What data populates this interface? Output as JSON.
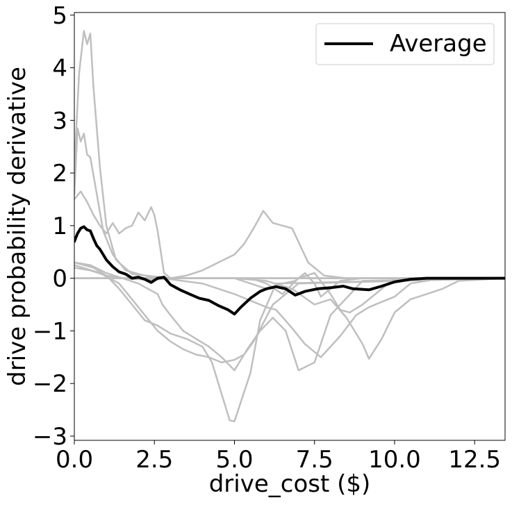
{
  "chart_data": {
    "type": "line",
    "title": "",
    "xlabel": "drive_cost ($)",
    "ylabel": "drive probability derivative",
    "xlim": [
      0,
      13.45
    ],
    "ylim": [
      -3.08,
      5.05
    ],
    "xticks": [
      0,
      2.5,
      5,
      7.5,
      10,
      12.5
    ],
    "xtick_labels": [
      "0.0",
      "2.5",
      "5.0",
      "7.5",
      "10.0",
      "12.5"
    ],
    "yticks": [
      -3,
      -2,
      -1,
      0,
      1,
      2,
      3,
      4,
      5
    ],
    "ytick_labels": [
      "−3",
      "−2",
      "−1",
      "0",
      "1",
      "2",
      "3",
      "4",
      "5"
    ],
    "grid": false,
    "legend": {
      "position": "top-right",
      "entries": [
        "Average"
      ]
    },
    "colors": {
      "average": "#000000",
      "individual": "#bfbfbf"
    },
    "series": [
      {
        "name": "",
        "role": "individual",
        "x": [
          0,
          0.15,
          0.3,
          0.4,
          0.5,
          0.6,
          0.8,
          1.0,
          1.3,
          1.8,
          3.0,
          13.45
        ],
        "y": [
          2.1,
          3.9,
          4.7,
          4.45,
          4.65,
          3.6,
          2.1,
          1.0,
          0.35,
          0.08,
          0.0,
          0.0
        ]
      },
      {
        "name": "",
        "role": "individual",
        "x": [
          0,
          0.1,
          0.2,
          0.3,
          0.4,
          0.5,
          0.7,
          0.9,
          1.2,
          1.6,
          2.5,
          13.45
        ],
        "y": [
          1.6,
          2.85,
          2.6,
          2.75,
          2.35,
          2.3,
          1.6,
          0.9,
          0.45,
          0.15,
          0.0,
          0.0
        ]
      },
      {
        "name": "",
        "role": "individual",
        "x": [
          0,
          0.2,
          0.4,
          0.6,
          0.8,
          1.0,
          1.2,
          1.4,
          1.6,
          1.8,
          2.0,
          2.2,
          2.4,
          2.5,
          2.6,
          2.7,
          2.8,
          3.0,
          3.5,
          13.45
        ],
        "y": [
          1.5,
          1.65,
          1.45,
          1.2,
          1.0,
          0.85,
          1.05,
          0.85,
          0.95,
          1.0,
          1.25,
          1.1,
          1.35,
          1.2,
          0.9,
          0.5,
          0.1,
          0.0,
          0.0,
          0.0
        ]
      },
      {
        "name": "",
        "role": "individual",
        "x": [
          0,
          0.5,
          1.0,
          1.5,
          2.0,
          2.5,
          3.0,
          3.5,
          4.0,
          4.5,
          5.0,
          5.3,
          5.6,
          5.9,
          6.2,
          6.8,
          7.3,
          7.8,
          8.5,
          13.45
        ],
        "y": [
          0.2,
          0.15,
          0.05,
          0.0,
          -0.02,
          -0.03,
          0.0,
          0.05,
          0.15,
          0.3,
          0.45,
          0.65,
          0.95,
          1.28,
          1.05,
          0.95,
          0.3,
          0.05,
          0.0,
          0.0
        ]
      },
      {
        "name": "",
        "role": "individual",
        "x": [
          0,
          0.5,
          1.0,
          1.5,
          2.0,
          2.3,
          2.6,
          2.75,
          3.0,
          3.4,
          3.8,
          4.2,
          4.6,
          5.0,
          5.4,
          5.8,
          6.2,
          6.6,
          7.0,
          7.5,
          8.0,
          9.0,
          13.45
        ],
        "y": [
          0.3,
          0.25,
          0.1,
          0.0,
          -0.1,
          -0.2,
          -0.3,
          -0.5,
          -0.7,
          -1.0,
          -1.15,
          -1.3,
          -1.5,
          -1.75,
          -1.35,
          -1.0,
          -0.75,
          -1.0,
          -1.75,
          -1.6,
          -0.7,
          -0.05,
          0.0
        ]
      },
      {
        "name": "",
        "role": "individual",
        "x": [
          0,
          0.6,
          1.0,
          1.4,
          1.8,
          2.2,
          2.6,
          3.0,
          3.5,
          4.0,
          4.3,
          4.5,
          4.7,
          4.85,
          5.0,
          5.2,
          5.5,
          5.8,
          6.3,
          13.45
        ],
        "y": [
          0.3,
          0.2,
          0.05,
          -0.2,
          -0.5,
          -0.8,
          -0.9,
          -1.05,
          -1.15,
          -1.3,
          -1.6,
          -2.0,
          -2.4,
          -2.7,
          -2.72,
          -2.35,
          -1.8,
          -0.8,
          -0.1,
          0.0
        ]
      },
      {
        "name": "",
        "role": "individual",
        "x": [
          0,
          0.8,
          1.4,
          1.8,
          2.2,
          2.6,
          3.0,
          3.4,
          3.8,
          4.2,
          4.6,
          5.0,
          5.3,
          5.6,
          6.2,
          7.0,
          13.45
        ],
        "y": [
          0.25,
          0.1,
          -0.1,
          -0.4,
          -0.7,
          -1.0,
          -1.2,
          -1.35,
          -1.45,
          -1.5,
          -1.6,
          -1.55,
          -1.45,
          -1.2,
          -0.5,
          -0.1,
          0.0
        ]
      },
      {
        "name": "",
        "role": "individual",
        "x": [
          0,
          2.0,
          3.0,
          4.0,
          5.0,
          6.0,
          6.3,
          6.8,
          7.2,
          7.7,
          8.3,
          8.8,
          9.2,
          9.6,
          10.0,
          10.5,
          11.5,
          13.45
        ],
        "y": [
          0.0,
          0.0,
          -0.02,
          -0.1,
          -0.3,
          -0.55,
          -0.6,
          -0.95,
          -1.25,
          -1.5,
          -1.1,
          -0.7,
          -0.55,
          -0.45,
          -0.35,
          -0.1,
          0.0,
          0.0
        ]
      },
      {
        "name": "",
        "role": "individual",
        "x": [
          0,
          5.0,
          6.0,
          6.8,
          7.5,
          8.0,
          8.5,
          9.0,
          9.2,
          9.6,
          10.0,
          10.5,
          11.0,
          11.5,
          12.0,
          13.45
        ],
        "y": [
          0.0,
          0.0,
          -0.05,
          -0.2,
          -0.5,
          -0.4,
          -0.75,
          -1.25,
          -1.53,
          -1.15,
          -0.65,
          -0.4,
          -0.3,
          -0.2,
          -0.05,
          0.0
        ]
      },
      {
        "name": "",
        "role": "individual",
        "x": [
          0,
          5.5,
          6.0,
          6.5,
          7.0,
          7.5,
          8.0,
          8.3,
          8.6,
          9.0,
          10.0,
          13.45
        ],
        "y": [
          0.0,
          0.0,
          -0.1,
          -0.3,
          0.0,
          0.1,
          -0.3,
          -0.6,
          -0.65,
          -0.5,
          0.0,
          0.0
        ]
      },
      {
        "name": "",
        "role": "individual",
        "x": [
          0,
          5.0,
          5.5,
          6.0,
          6.5,
          6.9,
          7.2,
          7.5,
          7.7,
          8.0,
          8.3,
          9.0,
          13.45
        ],
        "y": [
          0.0,
          0.0,
          -0.1,
          -0.2,
          -0.1,
          -0.05,
          0.1,
          -0.1,
          -0.35,
          -0.2,
          -0.05,
          0.0,
          0.0
        ]
      },
      {
        "name": "",
        "role": "individual",
        "x": [
          0,
          13.45
        ],
        "y": [
          0.0,
          0.0
        ]
      },
      {
        "name": "Average",
        "role": "average",
        "x": [
          0,
          0.1,
          0.2,
          0.3,
          0.4,
          0.5,
          0.6,
          0.7,
          0.8,
          0.9,
          1.0,
          1.2,
          1.4,
          1.6,
          1.8,
          2.0,
          2.2,
          2.4,
          2.6,
          2.8,
          3.0,
          3.3,
          3.6,
          3.9,
          4.2,
          4.5,
          4.8,
          5.0,
          5.2,
          5.5,
          5.8,
          6.0,
          6.3,
          6.6,
          6.9,
          7.2,
          7.6,
          8.0,
          8.4,
          8.7,
          9.2,
          9.6,
          10.0,
          10.5,
          11.0,
          12.0,
          13.45
        ],
        "y": [
          0.7,
          0.85,
          0.95,
          0.98,
          0.92,
          0.9,
          0.75,
          0.62,
          0.55,
          0.45,
          0.35,
          0.22,
          0.12,
          0.08,
          0.0,
          0.02,
          -0.02,
          -0.08,
          0.0,
          0.02,
          -0.12,
          -0.22,
          -0.3,
          -0.38,
          -0.42,
          -0.52,
          -0.6,
          -0.68,
          -0.55,
          -0.38,
          -0.25,
          -0.2,
          -0.16,
          -0.2,
          -0.32,
          -0.25,
          -0.2,
          -0.18,
          -0.15,
          -0.2,
          -0.22,
          -0.15,
          -0.07,
          -0.02,
          0.0,
          0.0,
          0.0
        ]
      }
    ]
  }
}
